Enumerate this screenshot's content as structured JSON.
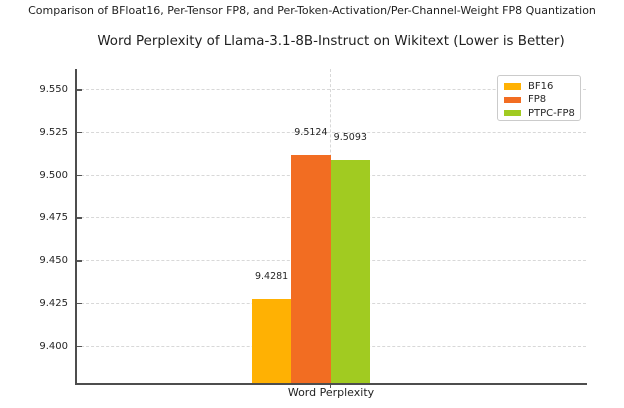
{
  "suptitle": "Comparison of BFloat16, Per-Tensor FP8, and Per-Token-Activation/Per-Channel-Weight FP8 Quantization",
  "chart_data": {
    "type": "bar",
    "title": "Word Perplexity of Llama-3.1-8B-Instruct on Wikitext (Lower is Better)",
    "xlabel": "Word Perplexity",
    "ylabel": "",
    "categories": [
      "Word Perplexity"
    ],
    "series": [
      {
        "name": "BF16",
        "value": 9.4281,
        "label": "9.4281",
        "color": "#ffb103"
      },
      {
        "name": "FP8",
        "value": 9.5124,
        "label": "9.5124",
        "color": "#f26d22"
      },
      {
        "name": "PTPC-FP8",
        "value": 9.5093,
        "label": "9.5093",
        "color": "#a1cb21"
      }
    ],
    "ylim": [
      9.3781,
      9.5624
    ],
    "ytick_labels": [
      "9.550",
      "9.525",
      "9.500",
      "9.475",
      "9.450",
      "9.425",
      "9.400"
    ],
    "grid": true,
    "grid_style": "dashed",
    "legend_position": "upper right"
  }
}
